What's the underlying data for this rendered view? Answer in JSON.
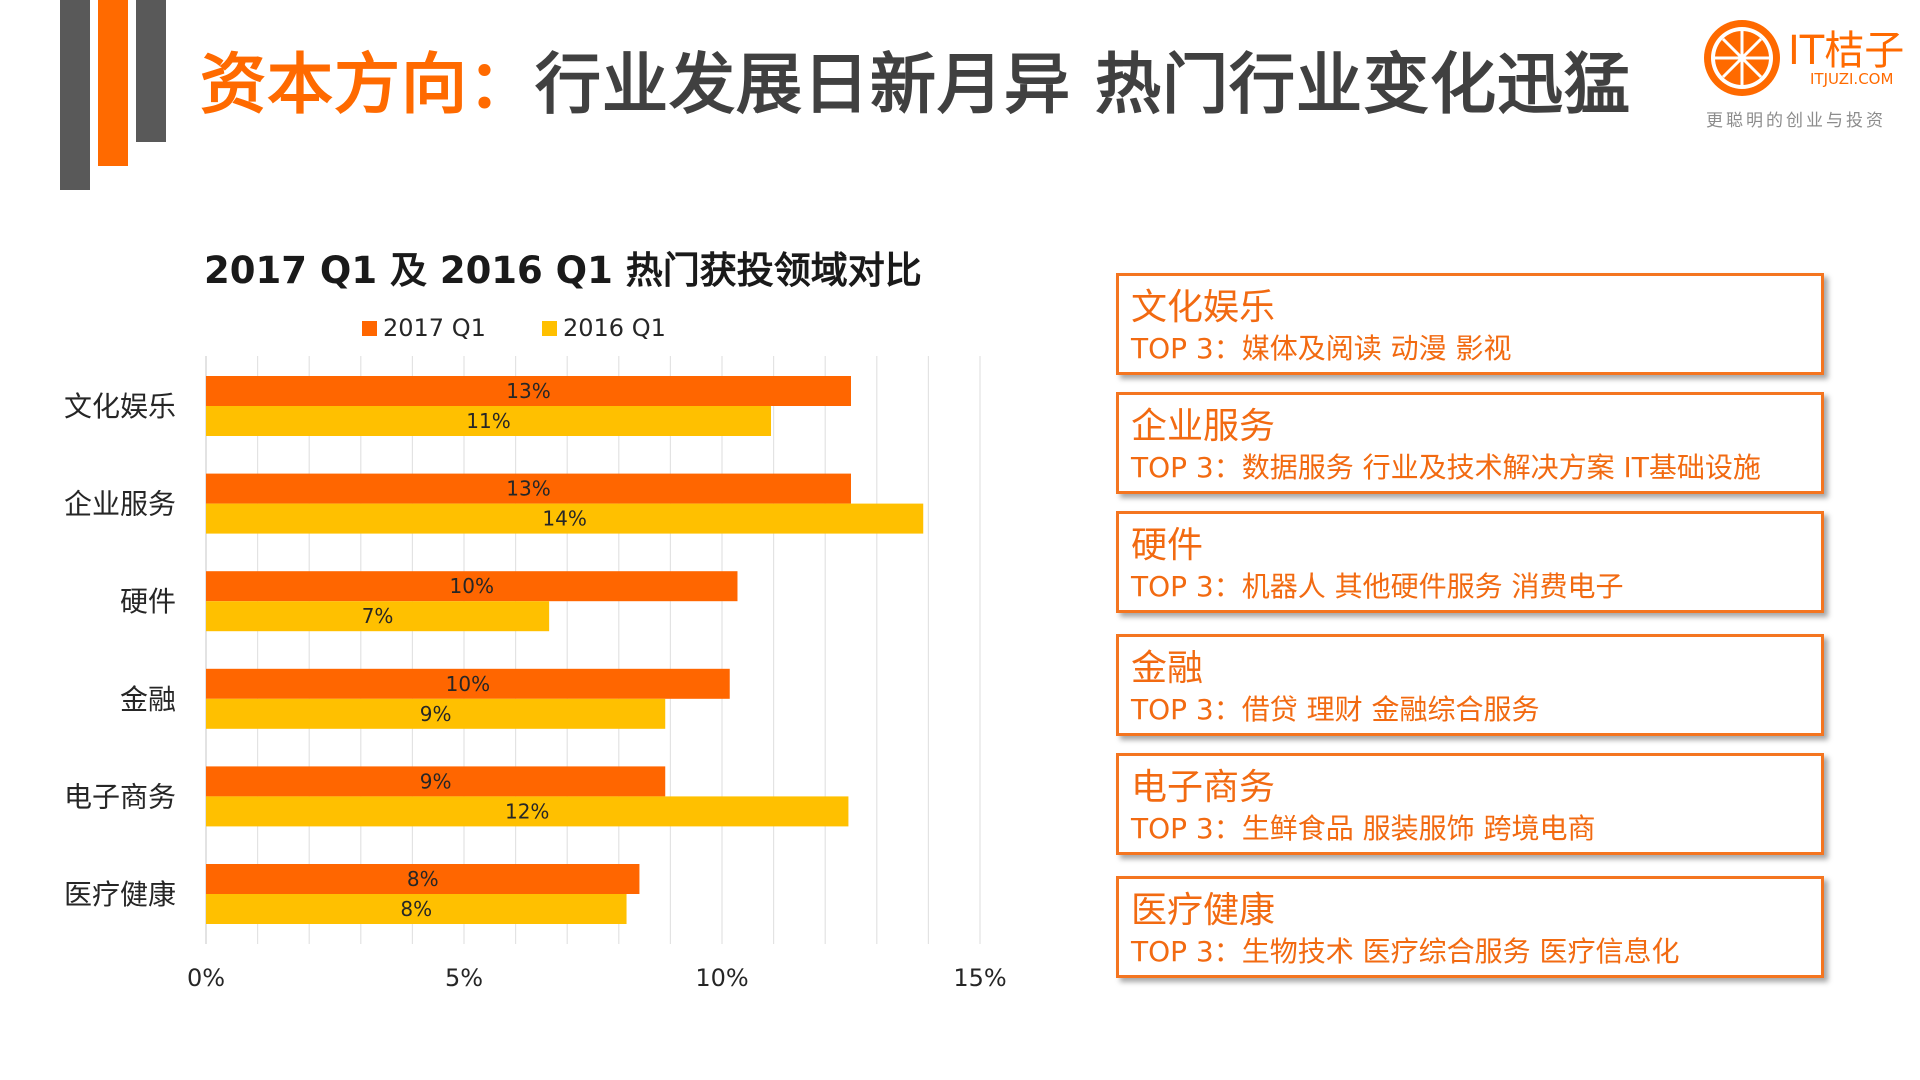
{
  "slide": {
    "title_accent": "资本方向：",
    "title_main": "行业发展日新月异 热门行业变化迅猛"
  },
  "logo": {
    "name": "IT桔子",
    "domain": "ITJUZI.COM",
    "slogan": "更聪明的创业与投资",
    "icon": "orange-slice-icon"
  },
  "colors": {
    "accent": "#ff6a00",
    "dark": "#595959",
    "series_2017": "#ff6600",
    "series_2016": "#ffc000",
    "card_border": "#f47520",
    "card_text": "#f26a11"
  },
  "chart_data": {
    "type": "bar",
    "orientation": "horizontal",
    "title": "2017 Q1 及 2016 Q1 热门获投领域对比",
    "categories": [
      "文化娱乐",
      "企业服务",
      "硬件",
      "金融",
      "电子商务",
      "医疗健康"
    ],
    "series": [
      {
        "name": "2017 Q1",
        "values": [
          12.5,
          12.5,
          10.3,
          10.15,
          8.9,
          8.4
        ],
        "labels": [
          "13%",
          "13%",
          "10%",
          "10%",
          "9%",
          "8%"
        ]
      },
      {
        "name": "2016 Q1",
        "values": [
          10.95,
          13.9,
          6.65,
          8.9,
          12.45,
          8.15
        ],
        "labels": [
          "11%",
          "14%",
          "7%",
          "9%",
          "12%",
          "8%"
        ]
      }
    ],
    "xlim": [
      0,
      15
    ],
    "xticks": [
      0,
      5,
      10,
      15
    ],
    "xtick_labels": [
      "0%",
      "5%",
      "10%",
      "15%"
    ],
    "grid": true,
    "legend": "top",
    "xlabel": "",
    "ylabel": ""
  },
  "cards": [
    {
      "title": "文化娱乐",
      "top3": "TOP 3：媒体及阅读 动漫 影视"
    },
    {
      "title": "企业服务",
      "top3": "TOP 3：数据服务 行业及技术解决方案 IT基础设施"
    },
    {
      "title": "硬件",
      "top3": "TOP 3：机器人 其他硬件服务 消费电子"
    },
    {
      "title": "金融",
      "top3": "TOP 3：借贷 理财 金融综合服务"
    },
    {
      "title": "电子商务",
      "top3": "TOP 3：生鲜食品 服装服饰 跨境电商"
    },
    {
      "title": "医疗健康",
      "top3": "TOP 3：生物技术 医疗综合服务 医疗信息化"
    }
  ]
}
